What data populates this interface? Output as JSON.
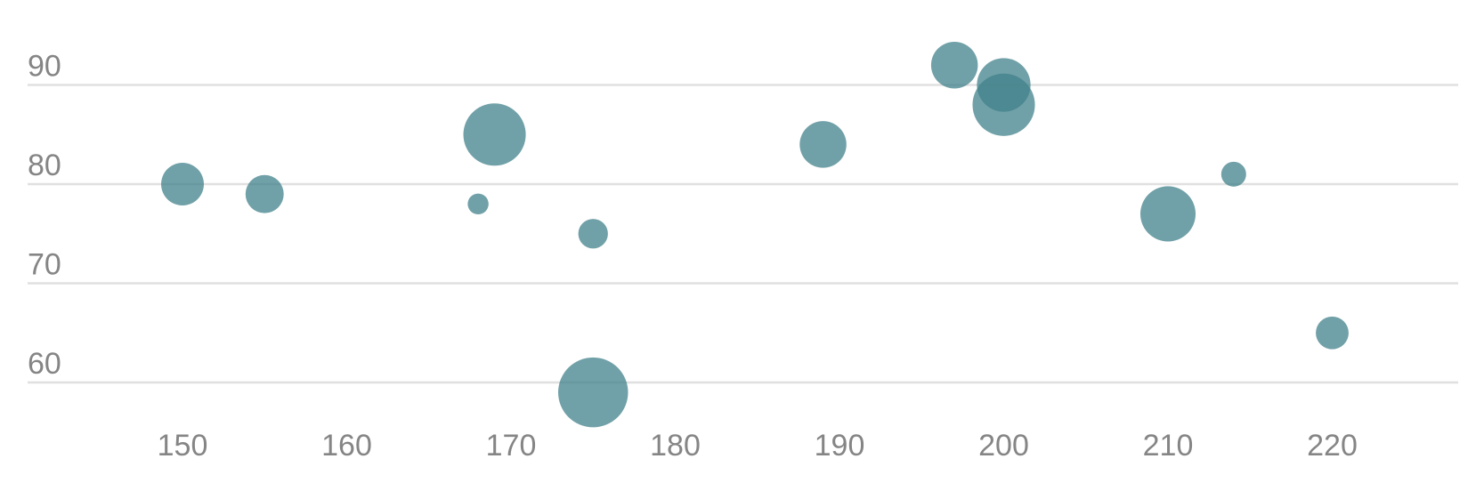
{
  "chart_data": {
    "type": "scatter",
    "variant": "bubble",
    "title": "",
    "xlabel": "",
    "ylabel": "",
    "xlim": [
      143,
      228
    ],
    "ylim": [
      56.5,
      96
    ],
    "x_ticks": [
      150,
      160,
      170,
      180,
      190,
      200,
      210,
      220
    ],
    "y_ticks": [
      60,
      70,
      80,
      90
    ],
    "grid": {
      "horizontal": true,
      "vertical": false
    },
    "legend": "none",
    "colors": {
      "bubble": "#41818b",
      "grid": "#e0e0e0",
      "tick_text": "#858585"
    },
    "series": [
      {
        "points": [
          {
            "x": 150,
            "y": 80,
            "size": 4
          },
          {
            "x": 155,
            "y": 79,
            "size": 3
          },
          {
            "x": 168,
            "y": 78,
            "size": 0.5
          },
          {
            "x": 169,
            "y": 85,
            "size": 10
          },
          {
            "x": 175,
            "y": 75,
            "size": 1.5
          },
          {
            "x": 175,
            "y": 59,
            "size": 13
          },
          {
            "x": 189,
            "y": 84,
            "size": 5
          },
          {
            "x": 197,
            "y": 92,
            "size": 5
          },
          {
            "x": 200,
            "y": 90,
            "size": 7
          },
          {
            "x": 200,
            "y": 88,
            "size": 10
          },
          {
            "x": 210,
            "y": 77,
            "size": 7.5
          },
          {
            "x": 214,
            "y": 81,
            "size": 0.9
          },
          {
            "x": 220,
            "y": 65,
            "size": 2
          }
        ]
      }
    ]
  }
}
